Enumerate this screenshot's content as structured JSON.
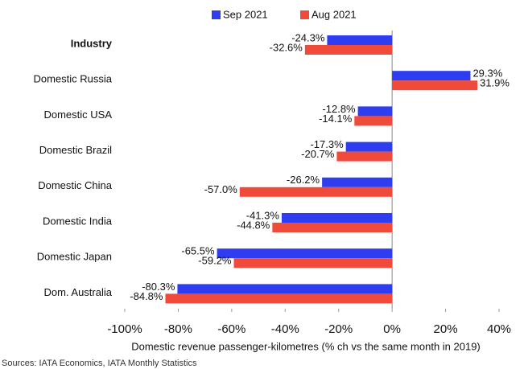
{
  "chart_data": {
    "type": "bar",
    "orientation": "horizontal",
    "x_label": "Domestic revenue passenger-kilometres (% ch vs the same month in 2019)",
    "source": "Sources: IATA Economics, IATA Monthly Statistics",
    "categories": [
      "Industry",
      "Domestic Russia",
      "Domestic USA",
      "Domestic Brazil",
      "Domestic China",
      "Domestic India",
      "Domestic Japan",
      "Dom. Australia"
    ],
    "series": [
      {
        "name": "Sep 2021",
        "color": "#2e3df0",
        "values": [
          -24.3,
          29.3,
          -12.8,
          -17.3,
          -26.2,
          -41.3,
          -65.5,
          -80.3
        ],
        "value_labels": [
          "-24.3%",
          "29.3%",
          "-12.8%",
          "-17.3%",
          "-26.2%",
          "-41.3%",
          "-65.5%",
          "-80.3%"
        ]
      },
      {
        "name": "Aug 2021",
        "color": "#f04a3a",
        "values": [
          -32.6,
          31.9,
          -14.1,
          -20.7,
          -57.0,
          -44.8,
          -59.2,
          -84.8
        ],
        "value_labels": [
          "-32.6%",
          "31.9%",
          "-14.1%",
          "-20.7%",
          "-57.0%",
          "-44.8%",
          "-59.2%",
          "-84.8%"
        ]
      }
    ],
    "xlim": [
      -100,
      40
    ],
    "xticks": [
      {
        "value": -100,
        "label": "-100%"
      },
      {
        "value": -80,
        "label": "-80%"
      },
      {
        "value": -60,
        "label": "-60%"
      },
      {
        "value": -40,
        "label": "-40%"
      },
      {
        "value": -20,
        "label": "-20%"
      },
      {
        "value": 0,
        "label": "0%"
      },
      {
        "value": 20,
        "label": "20%"
      },
      {
        "value": 40,
        "label": "40%"
      }
    ],
    "legend": "top"
  }
}
